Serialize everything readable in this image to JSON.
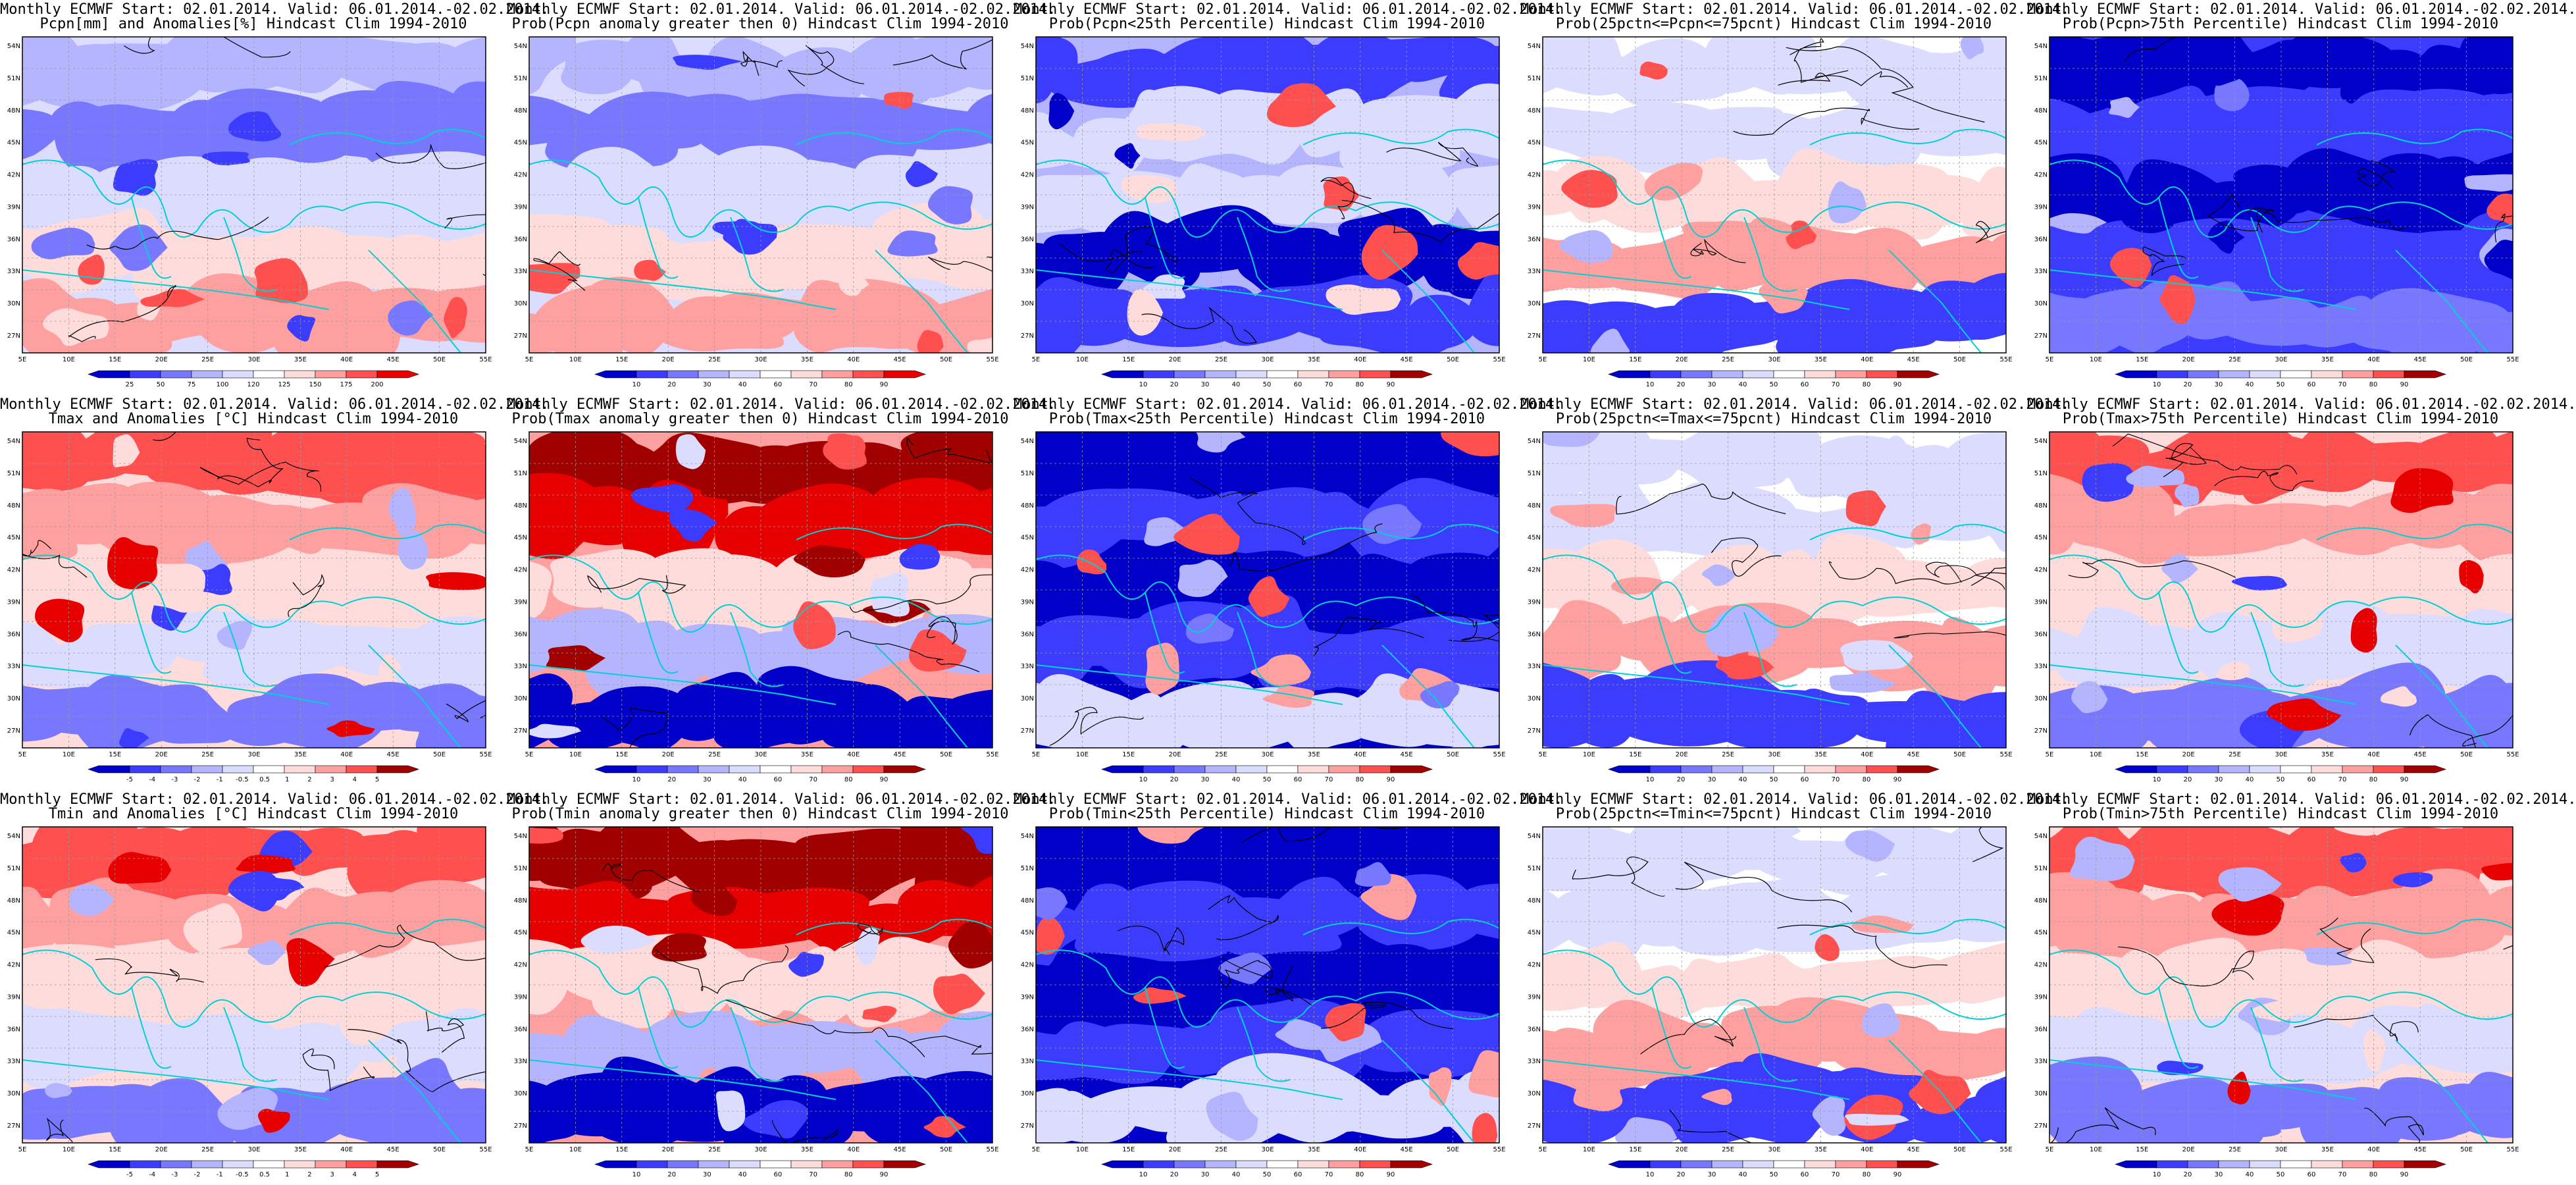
{
  "figure": {
    "panels": [
      {
        "title1": "Monthly ECMWF Start: 02.01.2014. Valid: 06.01.2014.-02.02.2014.",
        "title2": "Pcpn[mm] and Anomalies[%] Hindcast Clim 1994-2010",
        "scheme": "precip",
        "levels": [
          "25",
          "50",
          "75",
          "100",
          "120",
          "125",
          "150",
          "175",
          "200"
        ]
      },
      {
        "title1": "Monthly ECMWF Start: 02.01.2014. Valid: 06.01.2014.-02.02.2014.",
        "title2": "Prob(Pcpn anomaly greater then 0) Hindcast Clim 1994-2010",
        "scheme": "precip",
        "levels": [
          "10",
          "20",
          "30",
          "40",
          "60",
          "70",
          "80",
          "90"
        ]
      },
      {
        "title1": "Monthly ECMWF Start: 02.01.2014. Valid: 06.01.2014.-02.02.2014.",
        "title2": "Prob(Pcpn<25th Percentile) Hindcast Clim 1994-2010",
        "scheme": "dryblue",
        "levels": [
          "10",
          "20",
          "30",
          "40",
          "50",
          "60",
          "70",
          "80",
          "90"
        ]
      },
      {
        "title1": "Monthly ECMWF Start: 02.01.2014. Valid: 06.01.2014.-02.02.2014.",
        "title2": "Prob(25pctn<=Pcpn<=75pcnt) Hindcast Clim 1994-2010",
        "scheme": "mixed",
        "levels": [
          "10",
          "20",
          "30",
          "40",
          "50",
          "60",
          "70",
          "80",
          "90"
        ]
      },
      {
        "title1": "Monthly ECMWF Start: 02.01.2014. Valid: 06.01.2014.-02.02.2014.",
        "title2": "Prob(Pcpn>75th Percentile) Hindcast Clim 1994-2010",
        "scheme": "deepblue",
        "levels": [
          "10",
          "20",
          "30",
          "40",
          "50",
          "60",
          "70",
          "80",
          "90"
        ]
      },
      {
        "title1": "Monthly ECMWF Start: 02.01.2014. Valid: 06.01.2014.-02.02.2014.",
        "title2": "Tmax and Anomalies [°C] Hindcast Clim 1994-2010",
        "scheme": "warmN",
        "levels": [
          "-5",
          "-4",
          "-3",
          "-2",
          "-1",
          "-0.5",
          "0.5",
          "1",
          "2",
          "3",
          "4",
          "5"
        ]
      },
      {
        "title1": "Monthly ECMWF Start: 02.01.2014. Valid: 06.01.2014.-02.02.2014.",
        "title2": "Prob(Tmax anomaly greater then 0) Hindcast Clim 1994-2010",
        "scheme": "hotN",
        "levels": [
          "10",
          "20",
          "30",
          "40",
          "60",
          "70",
          "80",
          "90"
        ]
      },
      {
        "title1": "Monthly ECMWF Start: 02.01.2014. Valid: 06.01.2014.-02.02.2014.",
        "title2": "Prob(Tmax<25th Percentile) Hindcast Clim 1994-2010",
        "scheme": "coldAll",
        "levels": [
          "10",
          "20",
          "30",
          "40",
          "50",
          "60",
          "70",
          "80",
          "90"
        ]
      },
      {
        "title1": "Monthly ECMWF Start: 02.01.2014. Valid: 06.01.2014.-02.02.2014.",
        "title2": "Prob(25pctn<=Tmax<=75pcnt) Hindcast Clim 1994-2010",
        "scheme": "mixed",
        "levels": [
          "10",
          "20",
          "30",
          "40",
          "50",
          "60",
          "70",
          "80",
          "90"
        ]
      },
      {
        "title1": "Monthly ECMWF Start: 02.01.2014. Valid: 06.01.2014.-02.02.2014.",
        "title2": "Prob(Tmax>75th Percentile) Hindcast Clim 1994-2010",
        "scheme": "warmN",
        "levels": [
          "10",
          "20",
          "30",
          "40",
          "50",
          "60",
          "70",
          "80",
          "90"
        ]
      },
      {
        "title1": "Monthly ECMWF Start: 02.01.2014. Valid: 06.01.2014.-02.02.2014.",
        "title2": "Tmin and Anomalies [°C] Hindcast Clim 1994-2010",
        "scheme": "warmN",
        "levels": [
          "-5",
          "-4",
          "-3",
          "-2",
          "-1",
          "-0.5",
          "0.5",
          "1",
          "2",
          "3",
          "4",
          "5"
        ]
      },
      {
        "title1": "Monthly ECMWF Start: 02.01.2014. Valid: 06.01.2014.-02.02.2014.",
        "title2": "Prob(Tmin anomaly greater then 0) Hindcast Clim 1994-2010",
        "scheme": "hotN",
        "levels": [
          "10",
          "20",
          "30",
          "40",
          "60",
          "70",
          "80",
          "90"
        ]
      },
      {
        "title1": "Monthly ECMWF Start: 02.01.2014. Valid: 06.01.2014.-02.02.2014.",
        "title2": "Prob(Tmin<25th Percentile) Hindcast Clim 1994-2010",
        "scheme": "coldAll",
        "levels": [
          "10",
          "20",
          "30",
          "40",
          "50",
          "60",
          "70",
          "80",
          "90"
        ]
      },
      {
        "title1": "Monthly ECMWF Start: 02.01.2014. Valid: 06.01.2014.-02.02.2014.",
        "title2": "Prob(25pctn<=Tmin<=75pcnt) Hindcast Clim 1994-2010",
        "scheme": "mixed",
        "levels": [
          "10",
          "20",
          "30",
          "40",
          "50",
          "60",
          "70",
          "80",
          "90"
        ]
      },
      {
        "title1": "Monthly ECMWF Start: 02.01.2014. Valid: 06.01.2014.-02.02.2014.",
        "title2": "Prob(Tmin>75th Percentile) Hindcast Clim 1994-2010",
        "scheme": "warmN",
        "levels": [
          "10",
          "20",
          "30",
          "40",
          "50",
          "60",
          "70",
          "80",
          "90"
        ]
      }
    ],
    "lon_labels": [
      "5E",
      "10E",
      "15E",
      "20E",
      "25E",
      "30E",
      "35E",
      "40E",
      "45E",
      "50E",
      "55E"
    ],
    "lat_labels": [
      "54N",
      "51N",
      "48N",
      "45N",
      "42N",
      "39N",
      "36N",
      "33N",
      "30N",
      "27N"
    ],
    "colors": {
      "deep_blue": "#0000c8",
      "blue": "#3c3cff",
      "mid_blue": "#7878ff",
      "light_blue": "#b4b4ff",
      "pale_blue": "#dcdcff",
      "pale_red": "#ffdcdc",
      "light_red": "#ffa0a0",
      "red": "#ff5050",
      "deep_red": "#e60000",
      "dark_red": "#a00000",
      "coast": "#00d2d2",
      "contour": "#000000"
    }
  }
}
